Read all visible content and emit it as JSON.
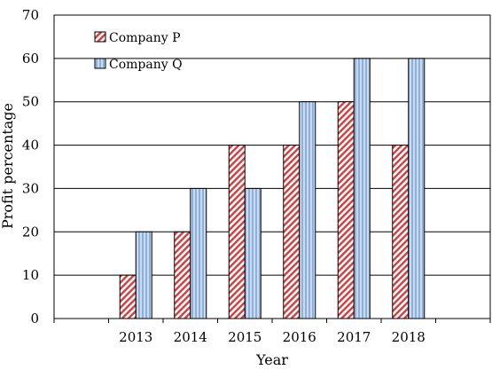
{
  "chart_data": {
    "type": "bar",
    "title": "",
    "xlabel": "Year",
    "ylabel": "Profit percentage",
    "categories": [
      "",
      "2013",
      "2014",
      "2015",
      "2016",
      "2017",
      "2018",
      ""
    ],
    "ylim": [
      0,
      70
    ],
    "yticks": [
      0,
      10,
      20,
      30,
      40,
      50,
      60,
      70
    ],
    "grid": "horizontal",
    "legend_position": "top-left",
    "series": [
      {
        "name": "Company P",
        "values": [
          null,
          10,
          20,
          40,
          40,
          50,
          40,
          null
        ],
        "color": "#d9534f",
        "pattern": "diagonal-hatch"
      },
      {
        "name": "Company Q",
        "values": [
          null,
          20,
          30,
          30,
          50,
          60,
          60,
          null
        ],
        "color": "#9fbde0",
        "pattern": "vertical-stripes"
      }
    ]
  }
}
